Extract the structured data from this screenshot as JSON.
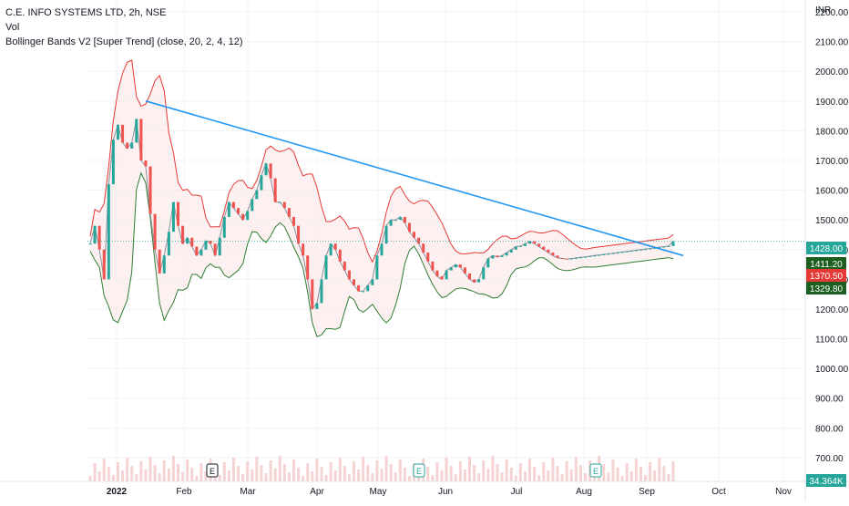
{
  "legend": {
    "title": "C.E. INFO SYSTEMS LTD, 2h, NSE",
    "vol": "Vol",
    "indicator": "Bollinger Bands V2 [Super Trend] (close, 20, 2, 4, 12)"
  },
  "colors": {
    "up": "#26a69a",
    "down": "#ef5350",
    "band_green": "#2e7d32",
    "band_red": "#e53935",
    "trendline": "#2196f3",
    "grid": "#f0f3fa",
    "axis_text": "#131722",
    "volume": "#f6d3d3"
  },
  "event_markers": [
    "E",
    "E",
    "E"
  ],
  "chart_data": {
    "type": "line",
    "currency": "INR",
    "y_ticks": [
      700,
      800,
      900,
      1000,
      1100,
      1200,
      1300,
      1400,
      1500,
      1600,
      1700,
      1800,
      1900,
      2000,
      2100,
      2200
    ],
    "ylim": [
      620,
      2240
    ],
    "x_ticks": [
      "2022",
      "Feb",
      "Mar",
      "Apr",
      "May",
      "Jun",
      "Jul",
      "Aug",
      "Sep",
      "Oct",
      "Nov"
    ],
    "price_labels": [
      {
        "value": "1428.00",
        "color": "#26a69a"
      },
      {
        "value": "1411.20",
        "color": "#1b5e20"
      },
      {
        "value": "1370.50",
        "color": "#e53935"
      },
      {
        "value": "1329.80",
        "color": "#1b5e20"
      }
    ],
    "last_volume_label": "34.364K",
    "series": [
      {
        "name": "close",
        "x": [
          0,
          2,
          4,
          6,
          8,
          10,
          12,
          14,
          16,
          18,
          20,
          22,
          24,
          26,
          28,
          30,
          32,
          34,
          36,
          38,
          40,
          42,
          44,
          46,
          48,
          50,
          52,
          54,
          56,
          58,
          60,
          62,
          64,
          66,
          68,
          70,
          72,
          74,
          76,
          78,
          80,
          82,
          84,
          86,
          88,
          90,
          92,
          94,
          96,
          98,
          100,
          102,
          104,
          106,
          108,
          110,
          112,
          114,
          116,
          118,
          120,
          122,
          124,
          126,
          128,
          130,
          132,
          134,
          136,
          138,
          140,
          142,
          144,
          146,
          148,
          150,
          152,
          154,
          156,
          158,
          160,
          162,
          164,
          166,
          168,
          170,
          172,
          174,
          176,
          178,
          180,
          182,
          184,
          186,
          188,
          190,
          192,
          194,
          196,
          198,
          200,
          202,
          204,
          206,
          208,
          210,
          212,
          214,
          216,
          218,
          220,
          222,
          224,
          226,
          228,
          230,
          232,
          234,
          236,
          238,
          240,
          242,
          244,
          246,
          248,
          250,
          252
        ],
        "values": [
          1420,
          1480,
          1400,
          1300,
          1620,
          1770,
          1820,
          1760,
          1740,
          1760,
          1840,
          1700,
          1680,
          1520,
          1400,
          1320,
          1380,
          1460,
          1560,
          1480,
          1420,
          1440,
          1410,
          1380,
          1400,
          1430,
          1420,
          1380,
          1440,
          1510,
          1560,
          1540,
          1520,
          1500,
          1530,
          1570,
          1600,
          1650,
          1690,
          1640,
          1560,
          1560,
          1540,
          1510,
          1480,
          1420,
          1380,
          1300,
          1200,
          1220,
          1300,
          1380,
          1420,
          1400,
          1360,
          1330,
          1300,
          1280,
          1260,
          1260,
          1280,
          1300,
          1380,
          1420,
          1480,
          1500,
          1500,
          1510,
          1490,
          1460,
          1440,
          1420,
          1390,
          1360,
          1330,
          1310,
          1300,
          1330,
          1340,
          1350,
          1340,
          1320,
          1300,
          1290,
          1300,
          1340,
          1370,
          1380,
          1375,
          1380,
          1390,
          1400,
          1410,
          1412,
          1420,
          1428,
          1420,
          1410,
          1400,
          1390,
          1380,
          1372,
          1370,
          1368,
          1370,
          1372,
          1374,
          1376,
          1378,
          1380,
          1382,
          1384,
          1386,
          1388,
          1390,
          1392,
          1394,
          1396,
          1398,
          1400,
          1402,
          1404,
          1406,
          1408,
          1410,
          1412,
          1428
        ]
      }
    ],
    "trendline": {
      "name": "trendline",
      "points": [
        [
          1900,
          0.14
        ],
        [
          1380,
          0.995
        ]
      ]
    }
  }
}
